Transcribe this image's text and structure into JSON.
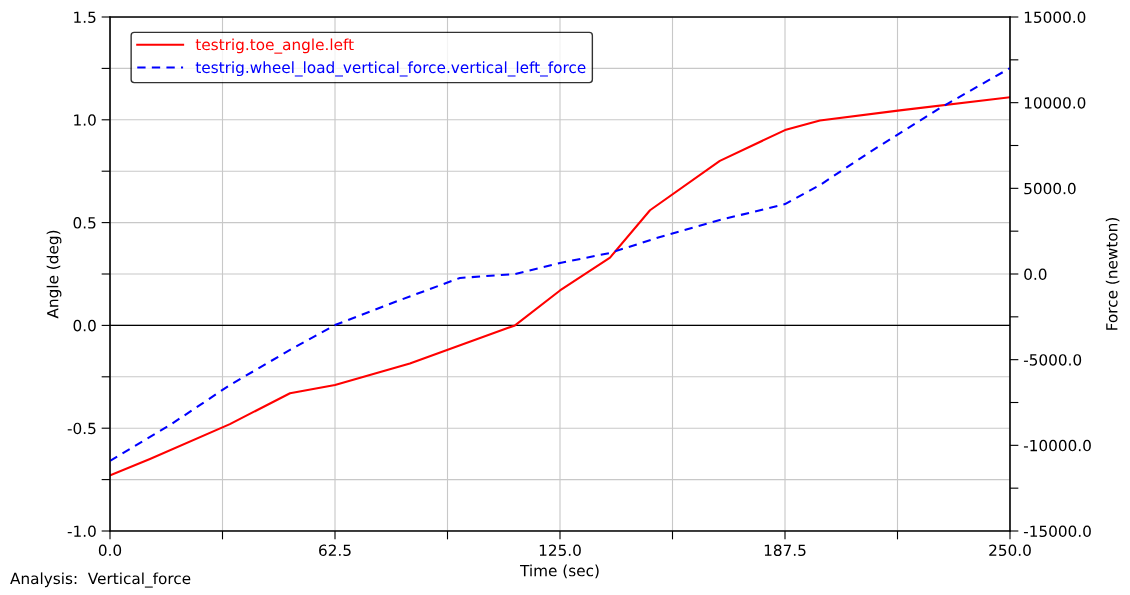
{
  "chart_data": {
    "type": "line",
    "xlabel": "Time (sec)",
    "ylabel": "Angle (deg)",
    "y2label": "Force (newton)",
    "annotations": [
      "Analysis:  Vertical_force"
    ],
    "xlim": [
      0,
      250
    ],
    "xticks": [
      {
        "value": 0,
        "label": "0.0"
      },
      {
        "value": 31.25,
        "label": null
      },
      {
        "value": 62.5,
        "label": "62.5"
      },
      {
        "value": 93.75,
        "label": null
      },
      {
        "value": 125,
        "label": "125.0"
      },
      {
        "value": 156.25,
        "label": null
      },
      {
        "value": 187.5,
        "label": "187.5"
      },
      {
        "value": 218.75,
        "label": null
      },
      {
        "value": 250,
        "label": "250.0"
      }
    ],
    "ylim": [
      -1.0,
      1.5
    ],
    "yticks": [
      {
        "value": -1.0,
        "label": "-1.0"
      },
      {
        "value": -0.75,
        "label": null
      },
      {
        "value": -0.5,
        "label": "-0.5"
      },
      {
        "value": -0.25,
        "label": null
      },
      {
        "value": 0,
        "label": "0.0"
      },
      {
        "value": 0.25,
        "label": null
      },
      {
        "value": 0.5,
        "label": "0.5"
      },
      {
        "value": 0.75,
        "label": null
      },
      {
        "value": 1.0,
        "label": "1.0"
      },
      {
        "value": 1.25,
        "label": null
      },
      {
        "value": 1.5,
        "label": "1.5"
      }
    ],
    "y2lim": [
      -15000,
      15000
    ],
    "y2ticks": [
      {
        "value": -15000,
        "label": "-15000.0"
      },
      {
        "value": -12500,
        "label": null
      },
      {
        "value": -10000,
        "label": "-10000.0"
      },
      {
        "value": -7500,
        "label": null
      },
      {
        "value": -5000,
        "label": "-5000.0"
      },
      {
        "value": -2500,
        "label": null
      },
      {
        "value": 0,
        "label": "0.0"
      },
      {
        "value": 2500,
        "label": null
      },
      {
        "value": 5000,
        "label": "5000.0"
      },
      {
        "value": 7500,
        "label": null
      },
      {
        "value": 10000,
        "label": "10000.0"
      },
      {
        "value": 12500,
        "label": null
      },
      {
        "value": 15000,
        "label": "15000.0"
      }
    ],
    "grid": true,
    "legend": "top left",
    "ref_lines": [
      {
        "axis": "y",
        "value": 0,
        "color": "#000000",
        "line_style": "solid"
      }
    ],
    "series": [
      {
        "name": "testrig.toe_angle.left",
        "color": "#ff0000",
        "line_style": "solid",
        "x": [
          0,
          11.1,
          33.3,
          50,
          62.5,
          83.3,
          112.5,
          125,
          138.9,
          150,
          169.4,
          187.5,
          197.2,
          219.4,
          250
        ],
        "values": [
          -0.73,
          -0.65,
          -0.48,
          -0.33,
          -0.29,
          -0.185,
          0.0,
          0.17,
          0.33,
          0.56,
          0.8,
          0.95,
          0.997,
          1.046,
          1.11
        ]
      },
      {
        "name": "testrig.wheel_load_vertical_force.vertical_left_force",
        "color": "#0000ff",
        "line_style": "dashed",
        "axis": "y2",
        "x": [
          0,
          16.7,
          33.3,
          50,
          62.5,
          80.6,
          97.2,
          112.5,
          125,
          138.9,
          152.8,
          169.4,
          187.5,
          197.2,
          211.1,
          230.6,
          250
        ],
        "values": [
          -10910,
          -8810,
          -6480,
          -4430,
          -2980,
          -1520,
          -230,
          0,
          640,
          1230,
          2160,
          3150,
          4080,
          5190,
          7120,
          9690,
          12020
        ]
      }
    ]
  }
}
